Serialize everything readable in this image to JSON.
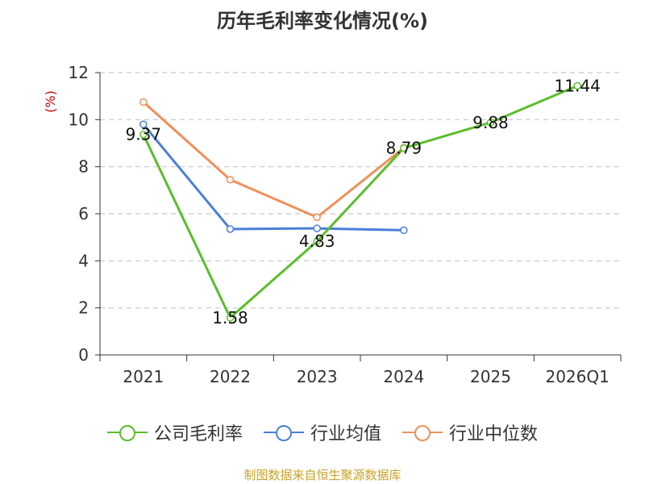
{
  "chart_data": {
    "type": "line",
    "title": "历年毛利率变化情况(%)",
    "ylabel": "(%)",
    "xlabel": "",
    "categories": [
      "2021",
      "2022",
      "2023",
      "2024",
      "2025",
      "2026Q1"
    ],
    "ylim": [
      0,
      12
    ],
    "yticks": [
      0,
      2,
      4,
      6,
      8,
      10,
      12
    ],
    "grid": true,
    "legend_position": "bottom",
    "series": [
      {
        "name": "公司毛利率",
        "color": "#5bbd2b",
        "values": [
          9.37,
          1.58,
          4.83,
          8.79,
          9.88,
          11.44
        ],
        "labels": [
          "9.37",
          "1.58",
          "4.83",
          "8.79",
          "9.88",
          "11.44"
        ]
      },
      {
        "name": "行业均值",
        "color": "#4a7fd8",
        "values": [
          9.8,
          5.35,
          5.38,
          5.3,
          null,
          null
        ],
        "labels": []
      },
      {
        "name": "行业中位数",
        "color": "#f0905a",
        "values": [
          10.75,
          7.45,
          5.85,
          8.8,
          null,
          null
        ],
        "labels": []
      }
    ]
  },
  "source": "制图数据来自恒生聚源数据库"
}
